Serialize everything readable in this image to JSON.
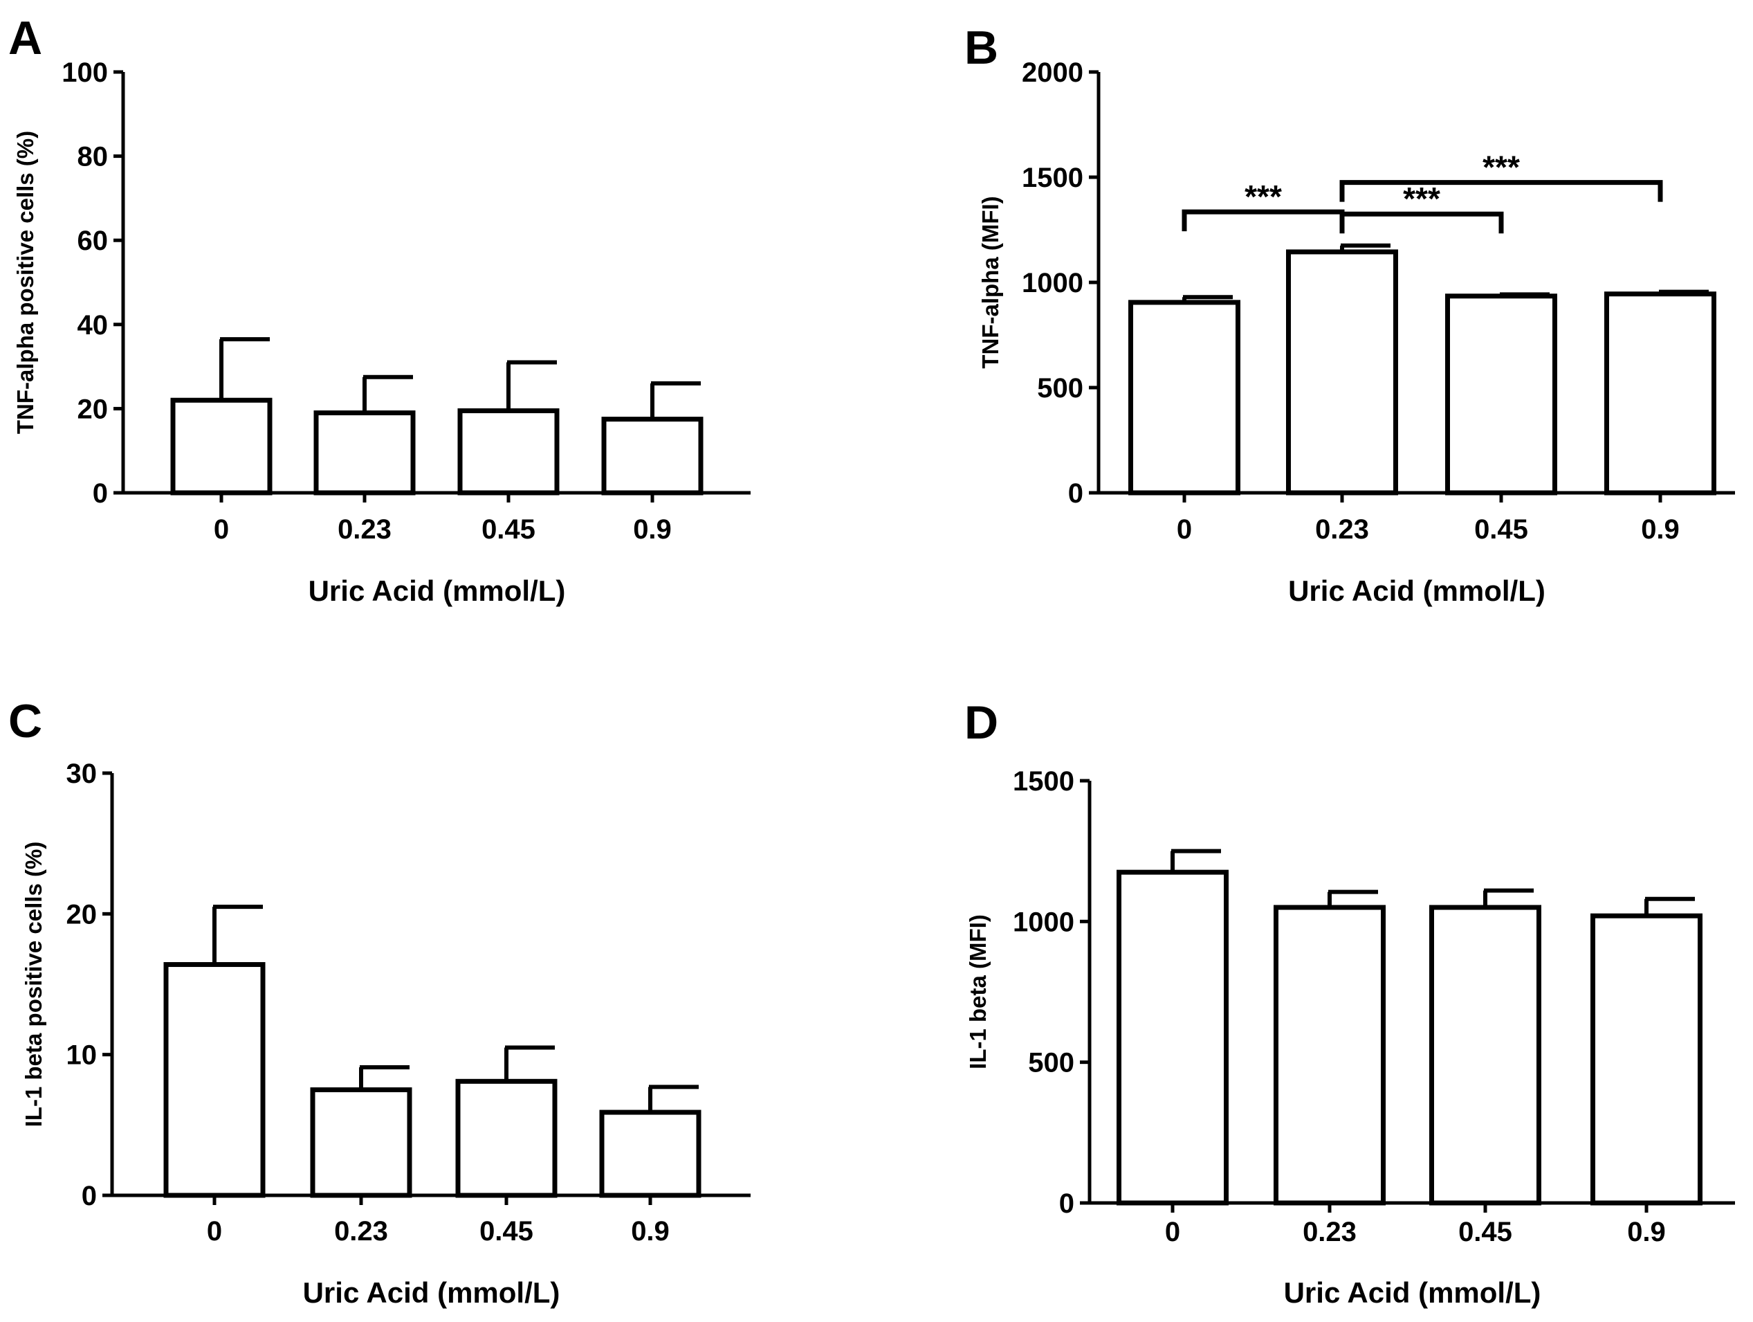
{
  "chart_data": [
    {
      "panel": "A",
      "type": "bar",
      "categories": [
        "0",
        "0.23",
        "0.45",
        "0.9"
      ],
      "values": [
        22,
        19,
        19.5,
        17.5
      ],
      "errors": [
        14.5,
        8.5,
        11.5,
        8.5
      ],
      "xlabel": "Uric Acid (mmol/L)",
      "ylabel": "TNF-alpha positive cells (%)",
      "ylim": [
        0,
        100
      ],
      "yticks": [
        0,
        20,
        40,
        60,
        80,
        100
      ],
      "significance": []
    },
    {
      "panel": "B",
      "type": "bar",
      "categories": [
        "0",
        "0.23",
        "0.45",
        "0.9"
      ],
      "values": [
        905,
        1145,
        935,
        945
      ],
      "errors": [
        25,
        30,
        8,
        10
      ],
      "xlabel": "Uric Acid (mmol/L)",
      "ylabel": "TNF-alpha (MFI)",
      "ylim": [
        0,
        2000
      ],
      "yticks": [
        0,
        500,
        1000,
        1500,
        2000
      ],
      "significance": [
        {
          "from": 0,
          "to": 1,
          "level": 1335,
          "label": "***"
        },
        {
          "from": 1,
          "to": 2,
          "level": 1325,
          "label": "***"
        },
        {
          "from": 1,
          "to": 3,
          "level": 1475,
          "label": "***"
        }
      ]
    },
    {
      "panel": "C",
      "type": "bar",
      "categories": [
        "0",
        "0.23",
        "0.45",
        "0.9"
      ],
      "values": [
        16.4,
        7.5,
        8.1,
        5.9
      ],
      "errors": [
        4.1,
        1.6,
        2.4,
        1.8
      ],
      "xlabel": "Uric Acid (mmol/L)",
      "ylabel": "IL-1 beta positive cells (%)",
      "ylim": [
        0,
        30
      ],
      "yticks": [
        0,
        10,
        20,
        30
      ],
      "significance": []
    },
    {
      "panel": "D",
      "type": "bar",
      "categories": [
        "0",
        "0.23",
        "0.45",
        "0.9"
      ],
      "values": [
        1175,
        1050,
        1050,
        1020
      ],
      "errors": [
        75,
        55,
        60,
        60
      ],
      "xlabel": "Uric Acid (mmol/L)",
      "ylabel": "IL-1 beta (MFI)",
      "ylim": [
        0,
        1500
      ],
      "yticks": [
        0,
        500,
        1000,
        1500
      ],
      "significance": []
    }
  ]
}
